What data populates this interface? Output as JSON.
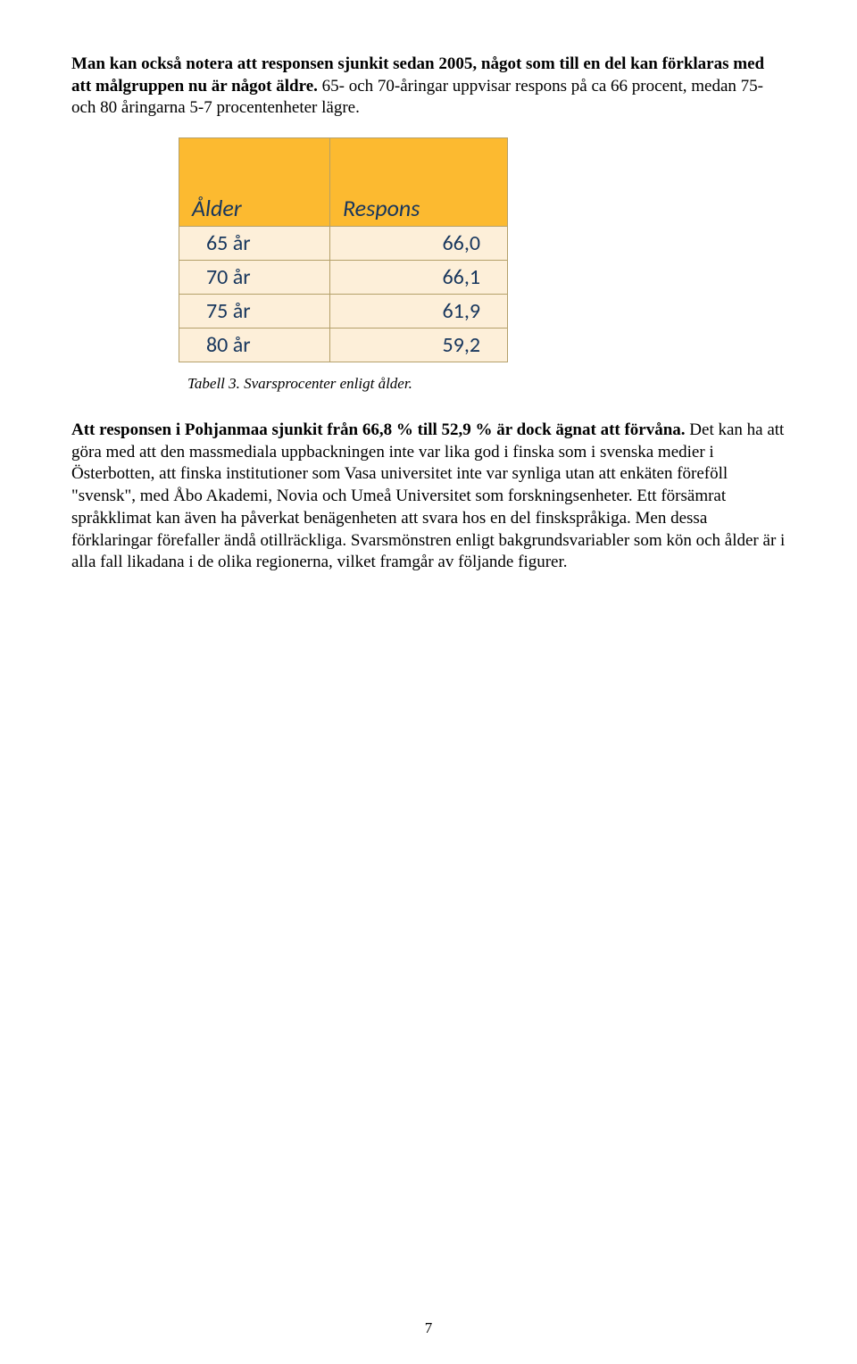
{
  "intro": {
    "p1_bold": "Man kan också notera att responsen sjunkit sedan 2005, något som till en del kan förklaras med att målgruppen nu är något äldre.",
    "p1_rest": " 65- och 70-åringar uppvisar respons på ca 66 procent, medan 75- och 80 åringarna 5-7 procentenheter lägre."
  },
  "table": {
    "header_age": "Ålder",
    "header_resp": "Respons",
    "rows": [
      {
        "age": "65 år",
        "resp": "66,0"
      },
      {
        "age": "70 år",
        "resp": "66,1"
      },
      {
        "age": "75 år",
        "resp": "61,9"
      },
      {
        "age": "80 år",
        "resp": "59,2"
      }
    ],
    "caption": "Tabell 3. Svarsprocenter enligt ålder."
  },
  "body": {
    "p2_bold": "Att responsen i Pohjanmaa sjunkit från 66,8 % till 52,9 % är dock ägnat att förvåna.",
    "p2_rest": " Det kan ha att göra med att den massmediala uppbackningen inte var lika god i finska som i svenska medier i Österbotten, att finska institutioner som Vasa universitet inte var synliga utan att enkäten föreföll \"svensk\", med Åbo Akademi, Novia och Umeå Universitet som forskningsenheter. Ett försämrat språkklimat kan även ha påverkat benägenheten att svara hos en del finskspråkiga. Men dessa förklaringar förefaller ändå otillräckliga. Svarsmönstren enligt bakgrundsvariabler som kön och ålder är i alla fall likadana i de olika regionerna, vilket framgår av följande figurer."
  },
  "page_number": "7"
}
